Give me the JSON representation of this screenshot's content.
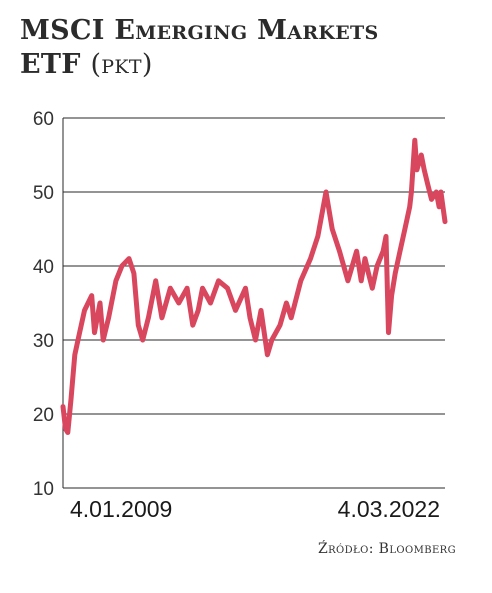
{
  "title": {
    "line1": "MSCI Emerging Markets",
    "line2": "ETF",
    "unit": "(pkt)"
  },
  "source": "Źródło: Bloomberg",
  "chart_data": {
    "type": "line",
    "title": "MSCI Emerging Markets ETF (pkt)",
    "xlabel": "",
    "ylabel": "",
    "ylim": [
      10,
      60
    ],
    "yticks": [
      10,
      20,
      30,
      40,
      50,
      60
    ],
    "x_tick_labels": [
      "4.01.2009",
      "4.03.2022"
    ],
    "x_range": [
      "2009-01-04",
      "2022-03-04"
    ],
    "grid": true,
    "line_color": "#d8475e",
    "series": [
      {
        "x": [
          "2009-01-04",
          "2009-02-05",
          "2009-03-06",
          "2009-04-15",
          "2009-06-01",
          "2009-08-01",
          "2009-10-01",
          "2009-12-31",
          "2010-02-05",
          "2010-04-15",
          "2010-05-25",
          "2010-08-01",
          "2010-11-01",
          "2011-01-15",
          "2011-04-15",
          "2011-06-15",
          "2011-08-10",
          "2011-10-04",
          "2011-12-15",
          "2012-03-15",
          "2012-06-01",
          "2012-09-15",
          "2012-12-31",
          "2013-04-15",
          "2013-06-25",
          "2013-09-01",
          "2013-10-25",
          "2014-02-03",
          "2014-05-15",
          "2014-09-05",
          "2014-12-15",
          "2015-04-20",
          "2015-06-15",
          "2015-08-24",
          "2015-11-01",
          "2016-01-20",
          "2016-03-15",
          "2016-06-27",
          "2016-09-15",
          "2016-11-15",
          "2017-03-15",
          "2017-07-15",
          "2017-10-15",
          "2018-01-26",
          "2018-04-15",
          "2018-07-15",
          "2018-10-29",
          "2019-02-15",
          "2019-04-15",
          "2019-06-01",
          "2019-07-15",
          "2019-09-01",
          "2019-11-01",
          "2020-01-15",
          "2020-02-20",
          "2020-03-23",
          "2020-05-01",
          "2020-06-15",
          "2020-08-15",
          "2020-10-15",
          "2020-12-15",
          "2021-01-05",
          "2021-02-17",
          "2021-03-15",
          "2021-05-10",
          "2021-06-15",
          "2021-07-30",
          "2021-09-15",
          "2021-11-15",
          "2021-12-20",
          "2022-01-12",
          "2022-03-04"
        ],
        "values": [
          21,
          18,
          17.5,
          22,
          28,
          31,
          34,
          36,
          31,
          35,
          30,
          33,
          38,
          40,
          41,
          39,
          32,
          30,
          33,
          38,
          33,
          37,
          35,
          37,
          32,
          34,
          37,
          35,
          38,
          37,
          34,
          37,
          33,
          30,
          34,
          28,
          30,
          32,
          35,
          33,
          38,
          41,
          44,
          50,
          45,
          42,
          38,
          42,
          38,
          41,
          39,
          37,
          40,
          42,
          44,
          31,
          36,
          39,
          42,
          45,
          48,
          50,
          57,
          53,
          55,
          53,
          51,
          49,
          50,
          48,
          50,
          46
        ]
      }
    ]
  }
}
